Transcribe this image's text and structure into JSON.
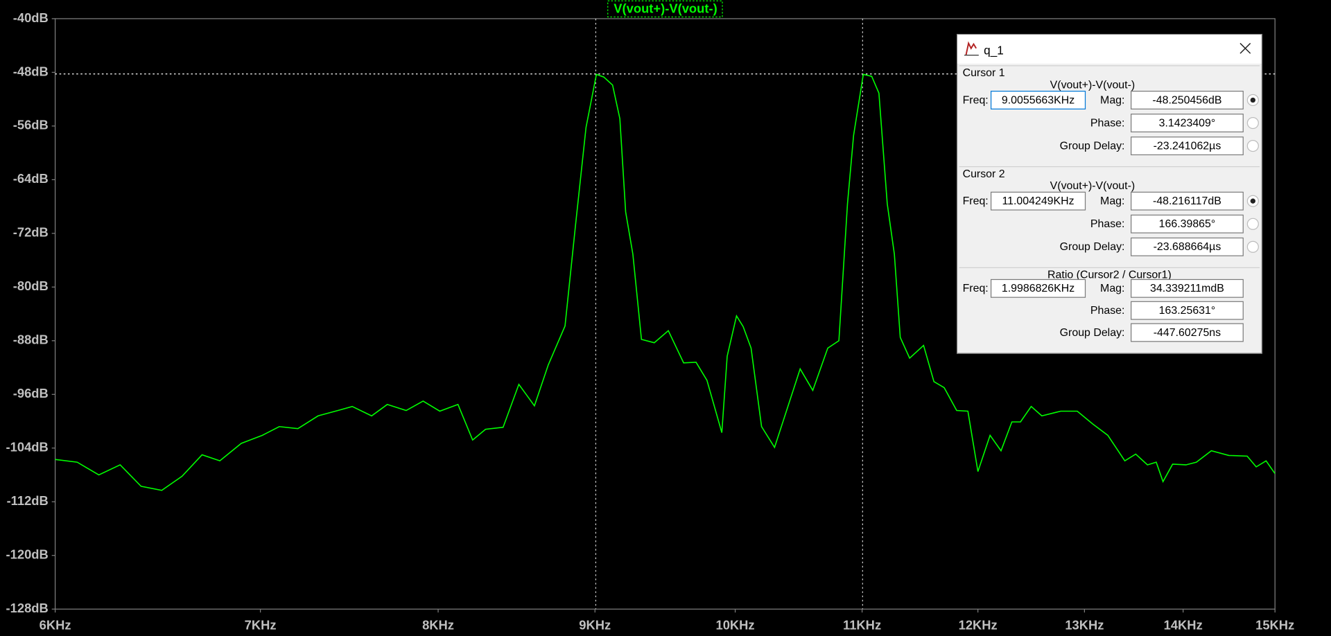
{
  "chart_data": {
    "type": "line",
    "series": [
      {
        "name": "V(vout+)-V(vout-)",
        "color": "#00ff00",
        "values": [
          -105.7,
          -106.1,
          -108.0,
          -106.5,
          -109.7,
          -110.3,
          -108.2,
          -105.0,
          -105.9,
          -103.3,
          -102.1,
          -100.8,
          -101.1,
          -99.2,
          -98.4,
          -97.8,
          -99.2,
          -97.5,
          -98.4,
          -97.0,
          -98.5,
          -97.5,
          -102.8,
          -101.2,
          -100.9,
          -94.5,
          -97.7,
          -91.6,
          -85.8,
          -70.7,
          -56.2,
          -48.3,
          -48.7,
          -49.9,
          -54.9,
          -68.8,
          -75.1,
          -87.8,
          -88.3,
          -86.5,
          -91.3,
          -91.2,
          -93.9,
          -101.7,
          -90.3,
          -84.3,
          -85.9,
          -89.1,
          -100.8,
          -103.9,
          -99.2,
          -92.2,
          -95.4,
          -89.1,
          -88.0,
          -67.6,
          -57.4,
          -48.3,
          -48.6,
          -51.1,
          -67.6,
          -75.1,
          -87.5,
          -90.6,
          -88.7,
          -94.1,
          -95.0,
          -98.4,
          -98.5,
          -107.5,
          -102.1,
          -104.4,
          -100.1,
          -100.1,
          -97.8,
          -99.2,
          -98.5,
          -98.5,
          -100.4,
          -102.1,
          -105.9,
          -104.9,
          -106.5,
          -106.1,
          -109.0,
          -106.4,
          -106.5,
          -106.1,
          -104.4,
          -105.1,
          -105.2,
          -106.8,
          -105.9,
          -107.8
        ]
      }
    ],
    "x": [
      6.0,
      6.1,
      6.2,
      6.3,
      6.4,
      6.5,
      6.6,
      6.7,
      6.79,
      6.9,
      7.01,
      7.1,
      7.2,
      7.31,
      7.42,
      7.5,
      7.61,
      7.7,
      7.81,
      7.91,
      8.01,
      8.12,
      8.21,
      8.29,
      8.4,
      8.5,
      8.6,
      8.69,
      8.8,
      8.87,
      8.94,
      9.01,
      9.06,
      9.12,
      9.17,
      9.21,
      9.26,
      9.32,
      9.41,
      9.51,
      9.62,
      9.71,
      9.79,
      9.9,
      9.94,
      10.01,
      10.06,
      10.12,
      10.2,
      10.3,
      10.38,
      10.5,
      10.6,
      10.72,
      10.81,
      10.88,
      10.93,
      11.01,
      11.08,
      11.14,
      11.21,
      11.27,
      11.32,
      11.4,
      11.52,
      11.61,
      11.7,
      11.81,
      11.91,
      12.0,
      12.11,
      12.21,
      12.31,
      12.39,
      12.49,
      12.59,
      12.77,
      12.93,
      13.08,
      13.23,
      13.4,
      13.51,
      13.63,
      13.72,
      13.79,
      13.89,
      14.03,
      14.14,
      14.3,
      14.49,
      14.69,
      14.79,
      14.9,
      15.0
    ],
    "x_log": true,
    "xlim": [
      6,
      15
    ],
    "xticks": [
      {
        "value": 6,
        "label": "6KHz"
      },
      {
        "value": 7,
        "label": "7KHz"
      },
      {
        "value": 8,
        "label": "8KHz"
      },
      {
        "value": 9,
        "label": "9KHz"
      },
      {
        "value": 10,
        "label": "10KHz"
      },
      {
        "value": 11,
        "label": "11KHz"
      },
      {
        "value": 12,
        "label": "12KHz"
      },
      {
        "value": 13,
        "label": "13KHz"
      },
      {
        "value": 14,
        "label": "14KHz"
      },
      {
        "value": 15,
        "label": "15KHz"
      }
    ],
    "ylim": [
      -128,
      -40
    ],
    "yticks": [
      {
        "value": -40,
        "label": "-40dB"
      },
      {
        "value": -48,
        "label": "-48dB"
      },
      {
        "value": -56,
        "label": "-56dB"
      },
      {
        "value": -64,
        "label": "-64dB"
      },
      {
        "value": -72,
        "label": "-72dB"
      },
      {
        "value": -80,
        "label": "-80dB"
      },
      {
        "value": -88,
        "label": "-88dB"
      },
      {
        "value": -96,
        "label": "-96dB"
      },
      {
        "value": -104,
        "label": "-104dB"
      },
      {
        "value": -112,
        "label": "-112dB"
      },
      {
        "value": -120,
        "label": "-120dB"
      },
      {
        "value": -128,
        "label": "-128dB"
      }
    ],
    "cursors": [
      {
        "x": 9.0055663,
        "y": -48.250456
      },
      {
        "x": 11.004249,
        "y": -48.216117
      }
    ]
  },
  "dialog": {
    "title": "q_1",
    "sections": [
      {
        "heading": "Cursor 1",
        "trace": "V(vout+)-V(vout-)",
        "freq_label": "Freq:",
        "freq": "9.0055663KHz",
        "mag_label": "Mag:",
        "mag": "-48.250456dB",
        "phase_label": "Phase:",
        "phase": "3.1423409°",
        "group_delay_label": "Group Delay:",
        "group_delay": "-23.241062µs"
      },
      {
        "heading": "Cursor 2",
        "trace": "V(vout+)-V(vout-)",
        "freq_label": "Freq:",
        "freq": "11.004249KHz",
        "mag_label": "Mag:",
        "mag": "-48.216117dB",
        "phase_label": "Phase:",
        "phase": "166.39865°",
        "group_delay_label": "Group Delay:",
        "group_delay": "-23.688664µs"
      },
      {
        "heading": "Ratio (Cursor2 / Cursor1)",
        "freq_label": "Freq:",
        "freq": "1.9986826KHz",
        "mag_label": "Mag:",
        "mag": "34.339211mdB",
        "phase_label": "Phase:",
        "phase": "163.25631°",
        "group_delay_label": "Group Delay:",
        "group_delay": "-447.60275ns"
      }
    ]
  }
}
